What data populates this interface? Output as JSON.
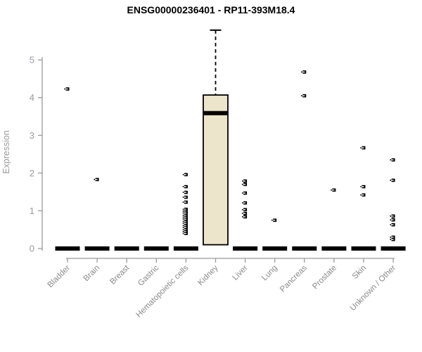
{
  "chart_data": {
    "type": "boxplot",
    "title": "ENSG00000236401 - RP11-393M18.4",
    "ylabel": "Expression",
    "xlabel": "",
    "ylim": [
      0,
      5.8
    ],
    "yticks": [
      0,
      1,
      2,
      3,
      4,
      5
    ],
    "grid": false,
    "legend": false,
    "categories": [
      "Bladder",
      "Brain",
      "Breast",
      "Gastric",
      "Hematopoietic cells",
      "Kidney",
      "Liver",
      "Lung",
      "Pancreas",
      "Prostate",
      "Skin",
      "Unknown / Other"
    ],
    "series": [
      {
        "name": "Bladder",
        "q1": 0,
        "median": 0,
        "q3": 0,
        "whisker_high": 0,
        "outliers": [
          4.23
        ]
      },
      {
        "name": "Brain",
        "q1": 0,
        "median": 0,
        "q3": 0,
        "whisker_high": 0,
        "outliers": [
          1.83
        ]
      },
      {
        "name": "Breast",
        "q1": 0,
        "median": 0,
        "q3": 0,
        "whisker_high": 0,
        "outliers": []
      },
      {
        "name": "Gastric",
        "q1": 0,
        "median": 0,
        "q3": 0,
        "whisker_high": 0,
        "outliers": []
      },
      {
        "name": "Hematopoietic cells",
        "q1": 0,
        "median": 0,
        "q3": 0,
        "whisker_high": 0,
        "outliers": [
          1.96,
          1.64,
          1.49,
          1.36,
          1.23,
          1.04,
          0.99,
          0.94,
          0.88,
          0.83,
          0.78,
          0.72,
          0.67,
          0.61,
          0.56,
          0.5,
          0.45,
          0.4
        ]
      },
      {
        "name": "Kidney",
        "q1": 0.1,
        "median": 3.59,
        "q3": 4.07,
        "whisker_high": 5.79,
        "outliers": []
      },
      {
        "name": "Liver",
        "q1": 0,
        "median": 0,
        "q3": 0,
        "whisker_high": 0,
        "outliers": [
          1.79,
          1.7,
          1.47,
          1.21,
          1.03,
          0.93,
          0.84
        ]
      },
      {
        "name": "Lung",
        "q1": 0,
        "median": 0,
        "q3": 0,
        "whisker_high": 0,
        "outliers": [
          0.75
        ]
      },
      {
        "name": "Pancreas",
        "q1": 0,
        "median": 0,
        "q3": 0,
        "whisker_high": 0,
        "outliers": [
          4.68,
          4.05
        ]
      },
      {
        "name": "Prostate",
        "q1": 0,
        "median": 0,
        "q3": 0,
        "whisker_high": 0,
        "outliers": [
          1.55
        ]
      },
      {
        "name": "Skin",
        "q1": 0,
        "median": 0,
        "q3": 0,
        "whisker_high": 0,
        "outliers": [
          2.67,
          1.64,
          1.42
        ]
      },
      {
        "name": "Unknown / Other",
        "q1": 0,
        "median": 0,
        "q3": 0,
        "whisker_high": 0,
        "outliers": [
          2.35,
          1.81,
          0.86,
          0.76,
          0.63,
          0.3,
          0.24
        ]
      }
    ],
    "colors": {
      "box_fill": "#ece5cb",
      "box_stroke": "#000000",
      "point": "#000000",
      "axis": "#9a9a9a",
      "tick_label": "#929aa3",
      "cat_label": "#8a8a8a",
      "title": "#000000",
      "background": "#ffffff"
    }
  }
}
